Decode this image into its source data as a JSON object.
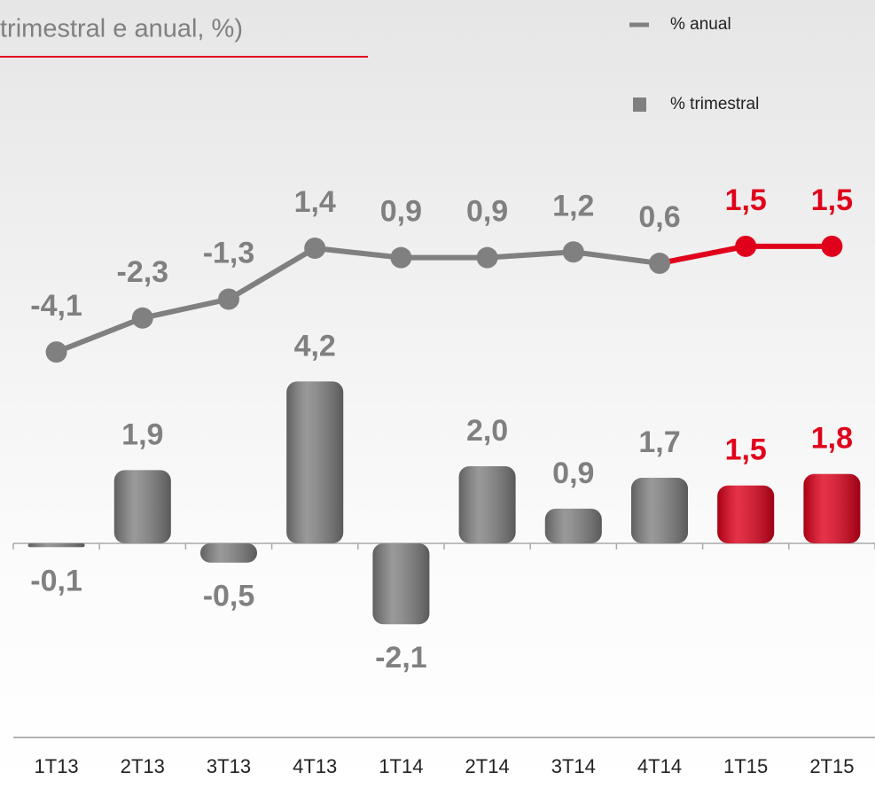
{
  "chart_data": {
    "type": "bar",
    "title": "trimestral e anual, %)",
    "categories": [
      "1T13",
      "2T13",
      "3T13",
      "4T13",
      "1T14",
      "2T14",
      "3T14",
      "4T14",
      "1T15",
      "2T15"
    ],
    "series": [
      {
        "name": "% trimestral",
        "type": "bar",
        "color": "#808080",
        "values": [
          -0.1,
          1.9,
          -0.5,
          4.2,
          -2.1,
          2.0,
          0.9,
          1.7,
          1.5,
          1.8
        ],
        "value_labels": [
          "-0,1",
          "1,9",
          "-0,5",
          "4,2",
          "-2,1",
          "2,0",
          "0,9",
          "1,7",
          "1,5",
          "1,8"
        ],
        "colors": [
          "#808080",
          "#808080",
          "#808080",
          "#808080",
          "#808080",
          "#808080",
          "#808080",
          "#808080",
          "#e0001b",
          "#e0001b"
        ]
      },
      {
        "name": "% anual",
        "type": "line",
        "axis": "y2",
        "color": "#808080",
        "values": [
          -4.1,
          -2.3,
          -1.3,
          1.4,
          0.9,
          0.9,
          1.2,
          0.6,
          1.5,
          1.5
        ],
        "value_labels": [
          "-4,1",
          "-2,3",
          "-1,3",
          "1,4",
          "0,9",
          "0,9",
          "1,2",
          "0,6",
          "1,5",
          "1,5"
        ],
        "colors": [
          "#808080",
          "#808080",
          "#808080",
          "#808080",
          "#808080",
          "#808080",
          "#808080",
          "#808080",
          "#e0001b",
          "#e0001b"
        ]
      }
    ],
    "ylim": [
      -6.35,
      14.1
    ],
    "y2lim": [
      -27.2,
      14.55
    ],
    "legend": "top-right"
  }
}
